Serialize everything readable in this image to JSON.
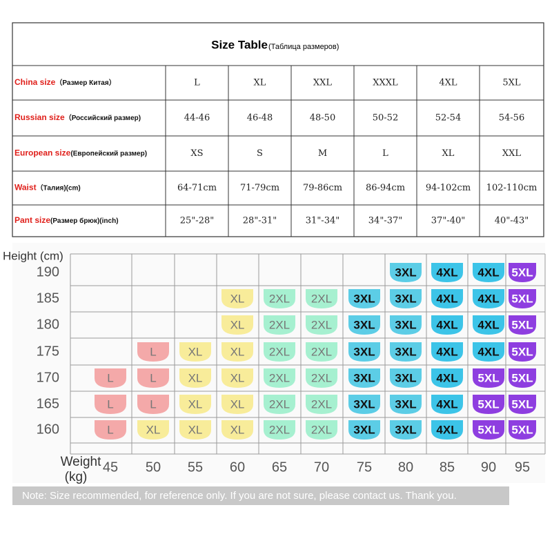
{
  "table": {
    "title": "Size Table",
    "title_note": "(Таблица размеров)",
    "rows": [
      {
        "label": "China size",
        "label_note": "（Размер Китая）",
        "cells": [
          "L",
          "XL",
          "XXL",
          "XXXL",
          "4XL",
          "5XL"
        ]
      },
      {
        "label": "Russian size",
        "label_note": "（Российский размер)",
        "cells": [
          "44-46",
          "46-48",
          "48-50",
          "50-52",
          "52-54",
          "54-56"
        ]
      },
      {
        "label": "European size",
        "label_note": "(Европейский размер)",
        "cells": [
          "XS",
          "S",
          "M",
          "L",
          "XL",
          "XXL"
        ]
      },
      {
        "label": "Waist",
        "label_note": "（Талия)(cm)",
        "cells": [
          "64-71cm",
          "71-79cm",
          "79-86cm",
          "86-94cm",
          "94-102cm",
          "102-110cm"
        ]
      },
      {
        "label": "Pant size",
        "label_note": "(Размер брюк)(inch)",
        "cells": [
          "25\"-28\"",
          "28\"-31\"",
          "31\"-34\"",
          "34\"-37\"",
          "37\"-40\"",
          "40\"-43\""
        ]
      }
    ]
  },
  "grid": {
    "y_label": "Height (cm)",
    "x_label": "Weight",
    "x_unit": "(kg)",
    "heights": [
      190,
      185,
      180,
      175,
      170,
      165,
      160
    ],
    "weights": [
      45,
      50,
      55,
      60,
      65,
      70,
      75,
      80,
      85,
      90,
      95
    ],
    "rows": [
      [
        null,
        null,
        null,
        null,
        null,
        null,
        null,
        {
          "label": "3XL",
          "color": "#5ccde6"
        },
        {
          "label": "4XL",
          "color": "#3cc4e8"
        },
        {
          "label": "4XL",
          "color": "#3cc4e8"
        },
        {
          "label": "5XL",
          "color": "#8e3ee0"
        }
      ],
      [
        null,
        null,
        null,
        {
          "label": "XL",
          "color": "#f8ec9a"
        },
        {
          "label": "2XL",
          "color": "#a6f0d0"
        },
        {
          "label": "2XL",
          "color": "#a6f0d0"
        },
        {
          "label": "3XL",
          "color": "#5ccde6"
        },
        {
          "label": "3XL",
          "color": "#5ccde6"
        },
        {
          "label": "4XL",
          "color": "#3cc4e8"
        },
        {
          "label": "4XL",
          "color": "#3cc4e8"
        },
        {
          "label": "5XL",
          "color": "#8e3ee0"
        }
      ],
      [
        null,
        null,
        null,
        {
          "label": "XL",
          "color": "#f8ec9a"
        },
        {
          "label": "2XL",
          "color": "#a6f0d0"
        },
        {
          "label": "2XL",
          "color": "#a6f0d0"
        },
        {
          "label": "3XL",
          "color": "#5ccde6"
        },
        {
          "label": "3XL",
          "color": "#5ccde6"
        },
        {
          "label": "4XL",
          "color": "#3cc4e8"
        },
        {
          "label": "4XL",
          "color": "#3cc4e8"
        },
        {
          "label": "5XL",
          "color": "#8e3ee0"
        }
      ],
      [
        null,
        {
          "label": "L",
          "color": "#f4a9a9"
        },
        {
          "label": "XL",
          "color": "#f8ec9a"
        },
        {
          "label": "XL",
          "color": "#f8ec9a"
        },
        {
          "label": "2XL",
          "color": "#a6f0d0"
        },
        {
          "label": "2XL",
          "color": "#a6f0d0"
        },
        {
          "label": "3XL",
          "color": "#5ccde6"
        },
        {
          "label": "3XL",
          "color": "#5ccde6"
        },
        {
          "label": "4XL",
          "color": "#3cc4e8"
        },
        {
          "label": "4XL",
          "color": "#3cc4e8"
        },
        {
          "label": "5XL",
          "color": "#8e3ee0"
        }
      ],
      [
        {
          "label": "L",
          "color": "#f4a9a9"
        },
        {
          "label": "L",
          "color": "#f4a9a9"
        },
        {
          "label": "XL",
          "color": "#f8ec9a"
        },
        {
          "label": "XL",
          "color": "#f8ec9a"
        },
        {
          "label": "2XL",
          "color": "#a6f0d0"
        },
        {
          "label": "2XL",
          "color": "#a6f0d0"
        },
        {
          "label": "3XL",
          "color": "#5ccde6"
        },
        {
          "label": "3XL",
          "color": "#5ccde6"
        },
        {
          "label": "4XL",
          "color": "#3cc4e8"
        },
        {
          "label": "5XL",
          "color": "#8e3ee0"
        },
        {
          "label": "5XL",
          "color": "#8e3ee0"
        }
      ],
      [
        {
          "label": "L",
          "color": "#f4a9a9"
        },
        {
          "label": "L",
          "color": "#f4a9a9"
        },
        {
          "label": "XL",
          "color": "#f8ec9a"
        },
        {
          "label": "XL",
          "color": "#f8ec9a"
        },
        {
          "label": "2XL",
          "color": "#a6f0d0"
        },
        {
          "label": "2XL",
          "color": "#a6f0d0"
        },
        {
          "label": "3XL",
          "color": "#5ccde6"
        },
        {
          "label": "3XL",
          "color": "#5ccde6"
        },
        {
          "label": "4XL",
          "color": "#3cc4e8"
        },
        {
          "label": "5XL",
          "color": "#8e3ee0"
        },
        {
          "label": "5XL",
          "color": "#8e3ee0"
        }
      ],
      [
        {
          "label": "L",
          "color": "#f4a9a9"
        },
        {
          "label": "XL",
          "color": "#f8ec9a"
        },
        {
          "label": "XL",
          "color": "#f8ec9a"
        },
        {
          "label": "XL",
          "color": "#f8ec9a"
        },
        {
          "label": "2XL",
          "color": "#a6f0d0"
        },
        {
          "label": "2XL",
          "color": "#a6f0d0"
        },
        {
          "label": "3XL",
          "color": "#5ccde6"
        },
        {
          "label": "3XL",
          "color": "#5ccde6"
        },
        {
          "label": "4XL",
          "color": "#3cc4e8"
        },
        {
          "label": "5XL",
          "color": "#8e3ee0"
        },
        {
          "label": "5XL",
          "color": "#8e3ee0"
        }
      ]
    ]
  },
  "note": "Note: Size recommended, for reference only. If you are not sure, please contact us. Thank you."
}
